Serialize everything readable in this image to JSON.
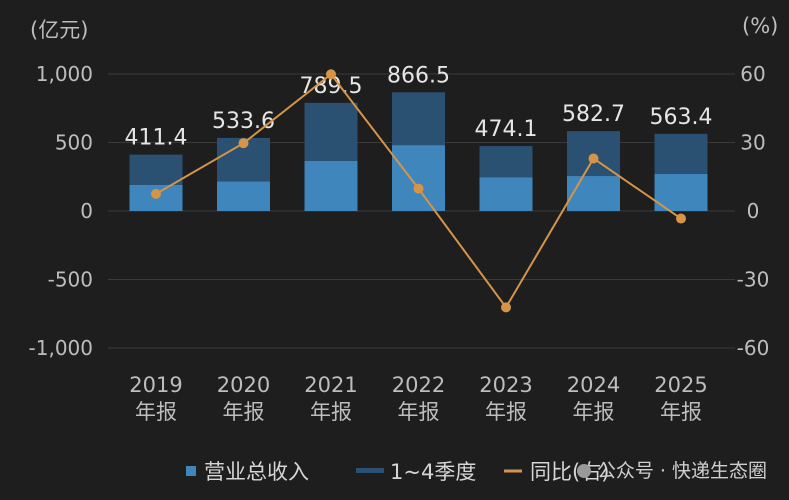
{
  "chart_data": {
    "type": "bar",
    "categories": [
      "2019\n年报",
      "2020\n年报",
      "2021\n年报",
      "2022\n年报",
      "2023\n年报",
      "2024\n年报",
      "2025\n年报"
    ],
    "series": [
      {
        "name": "营业总收入",
        "type": "bar",
        "axis": "left",
        "color": "#3f86bd",
        "values": [
          190,
          215,
          365,
          480,
          245,
          255,
          270
        ]
      },
      {
        "name": "1~4季度",
        "type": "bar",
        "axis": "left",
        "color": "#2a5072",
        "values": [
          411.4,
          533.6,
          789.5,
          866.5,
          474.1,
          582.7,
          563.4
        ]
      },
      {
        "name": "同比(右)",
        "type": "line",
        "axis": "right",
        "color": "#d59448",
        "values": [
          7.5,
          29.7,
          59.9,
          9.8,
          -42.2,
          23.0,
          -3.3
        ]
      }
    ],
    "data_labels": [
      "411.4",
      "533.6",
      "789.5",
      "866.5",
      "474.1",
      "582.7",
      "563.4"
    ],
    "y_left": {
      "unit": "(亿元)",
      "ylim": [
        -1000,
        1000
      ],
      "ticks": [
        "1,000",
        "500",
        "0",
        "-500",
        "-1,000"
      ],
      "tick_values": [
        1000,
        500,
        0,
        -500,
        -1000
      ]
    },
    "y_right": {
      "unit": "(%)",
      "ylim": [
        -60,
        60
      ],
      "ticks": [
        "60",
        "30",
        "0",
        "-30",
        "-60"
      ],
      "tick_values": [
        60,
        30,
        0,
        -30,
        -60
      ]
    },
    "legend_position": "bottom",
    "grid": true
  },
  "watermark": "公众号 · 快递生态圈"
}
